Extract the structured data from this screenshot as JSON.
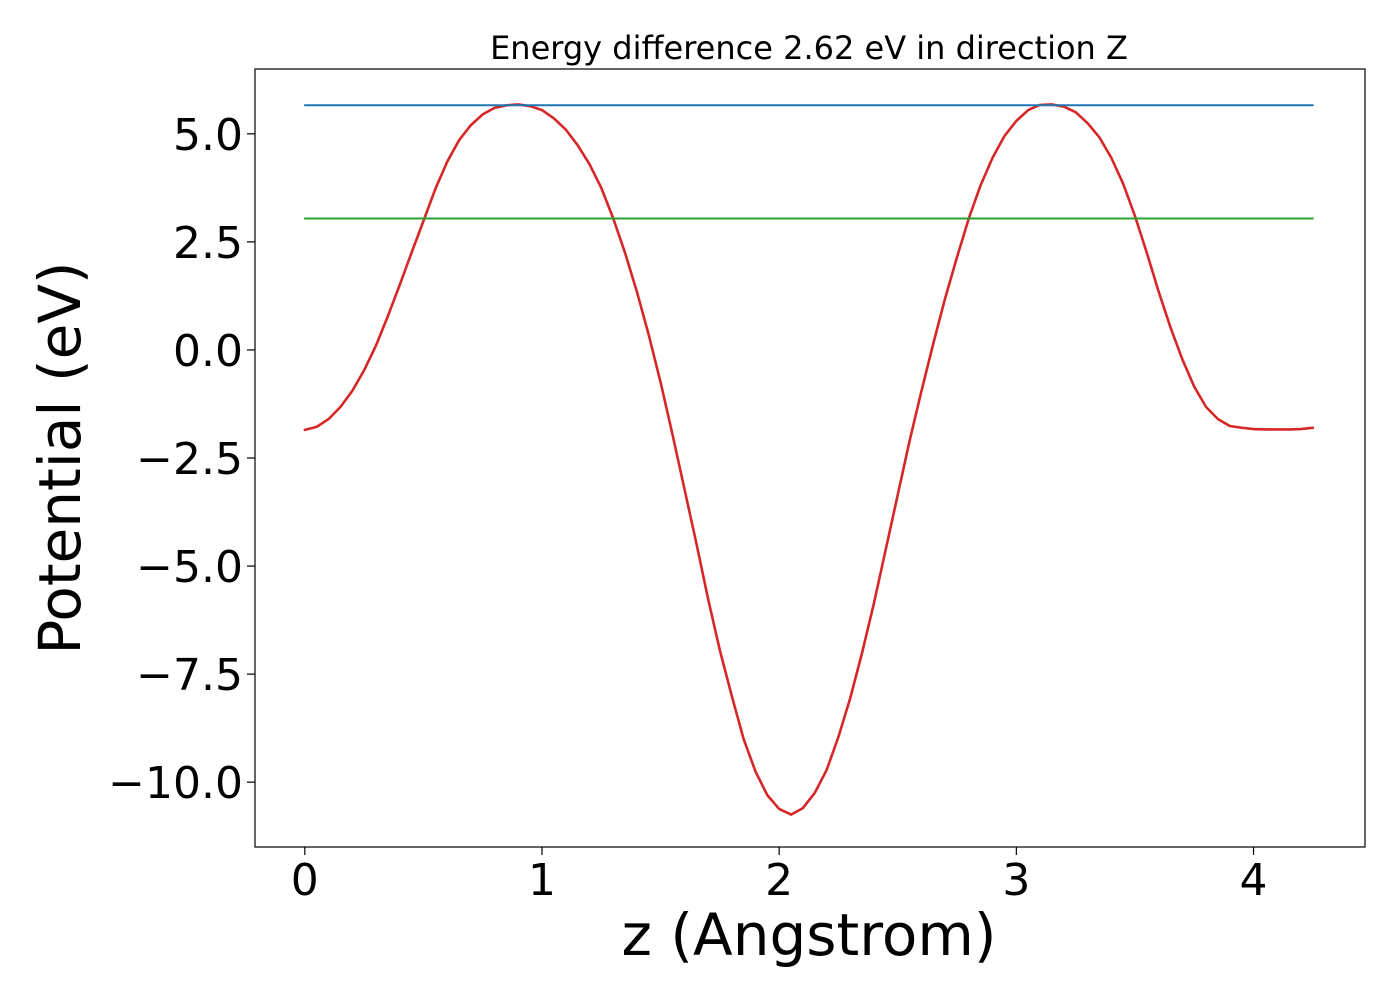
{
  "chart_data": {
    "type": "line",
    "title": "Energy difference 2.62 eV in direction Z",
    "xlabel": "z (Angstrom)",
    "ylabel": "Potential (eV)",
    "xlim": [
      -0.21,
      4.47
    ],
    "ylim": [
      -11.5,
      6.5
    ],
    "xticks": [
      0,
      1,
      2,
      3,
      4
    ],
    "xtick_labels": [
      "0",
      "1",
      "2",
      "3",
      "4"
    ],
    "yticks": [
      -10.0,
      -7.5,
      -5.0,
      -2.5,
      0.0,
      2.5,
      5.0
    ],
    "ytick_labels": [
      "−10.0",
      "−7.5",
      "−5.0",
      "−2.5",
      "0.0",
      "2.5",
      "5.0"
    ],
    "grid": false,
    "series": [
      {
        "color": "#d62728",
        "x": [
          0.0,
          0.05,
          0.1,
          0.15,
          0.2,
          0.25,
          0.3,
          0.35,
          0.4,
          0.45,
          0.5,
          0.55,
          0.6,
          0.65,
          0.7,
          0.75,
          0.8,
          0.85,
          0.9,
          0.95,
          1.0,
          1.05,
          1.1,
          1.15,
          1.2,
          1.25,
          1.3,
          1.35,
          1.4,
          1.45,
          1.5,
          1.55,
          1.6,
          1.65,
          1.7,
          1.75,
          1.8,
          1.85,
          1.9,
          1.95,
          2.0,
          2.05,
          2.1,
          2.15,
          2.2,
          2.25,
          2.3,
          2.35,
          2.4,
          2.45,
          2.5,
          2.55,
          2.6,
          2.65,
          2.7,
          2.75,
          2.8,
          2.85,
          2.9,
          2.95,
          3.0,
          3.05,
          3.1,
          3.15,
          3.2,
          3.25,
          3.3,
          3.35,
          3.4,
          3.45,
          3.5,
          3.55,
          3.6,
          3.65,
          3.7,
          3.75,
          3.8,
          3.85,
          3.9,
          3.95,
          4.0,
          4.05,
          4.1,
          4.15,
          4.2,
          4.25
        ],
        "y": [
          -1.85,
          -1.78,
          -1.6,
          -1.32,
          -0.95,
          -0.47,
          0.1,
          0.78,
          1.5,
          2.25,
          2.98,
          3.72,
          4.35,
          4.85,
          5.2,
          5.45,
          5.6,
          5.66,
          5.68,
          5.64,
          5.55,
          5.36,
          5.1,
          4.74,
          4.3,
          3.75,
          3.05,
          2.25,
          1.35,
          0.35,
          -0.75,
          -1.95,
          -3.2,
          -4.45,
          -5.75,
          -6.95,
          -8.0,
          -9.0,
          -9.75,
          -10.3,
          -10.62,
          -10.75,
          -10.6,
          -10.25,
          -9.72,
          -8.95,
          -8.05,
          -7.0,
          -5.85,
          -4.6,
          -3.35,
          -2.1,
          -0.95,
          0.15,
          1.2,
          2.15,
          3.05,
          3.82,
          4.45,
          4.95,
          5.3,
          5.55,
          5.67,
          5.68,
          5.63,
          5.5,
          5.25,
          4.92,
          4.45,
          3.85,
          3.1,
          2.25,
          1.35,
          0.52,
          -0.22,
          -0.85,
          -1.32,
          -1.6,
          -1.76,
          -1.8,
          -1.83,
          -1.84,
          -1.84,
          -1.84,
          -1.83,
          -1.8
        ]
      },
      {
        "color": "#1f77b4",
        "x": [
          0.0,
          4.25
        ],
        "y": [
          5.66,
          5.66
        ]
      },
      {
        "color": "#2ca02c",
        "x": [
          0.0,
          4.25
        ],
        "y": [
          3.04,
          3.04
        ]
      }
    ]
  }
}
